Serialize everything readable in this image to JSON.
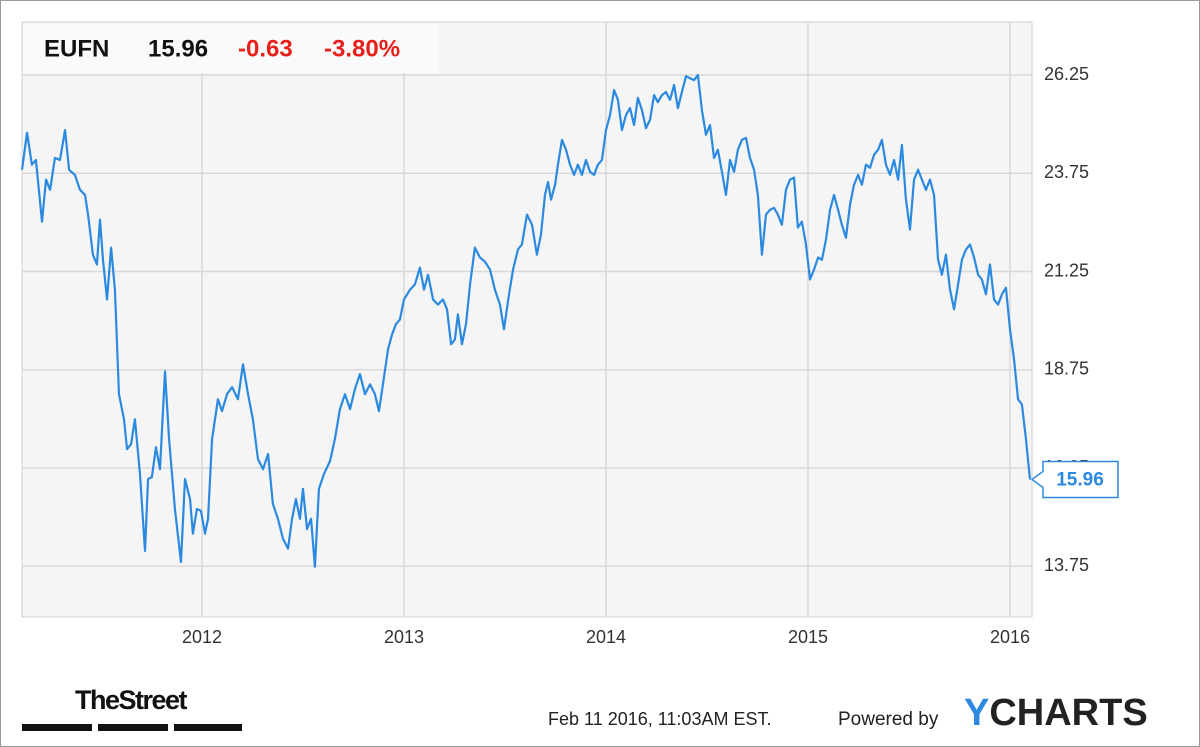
{
  "chart_data": {
    "type": "line",
    "symbol": "EUFN",
    "price": 15.96,
    "change": -0.63,
    "change_percent": "-3.80%",
    "color": "#2b8ae0",
    "grid": true,
    "xlim": [
      2011.109,
      2016.109
    ],
    "xticks": [
      2012,
      2013,
      2014,
      2015,
      2016
    ],
    "ylim": [
      12.46,
      27.6
    ],
    "yticks": [
      13.75,
      16.25,
      18.75,
      21.25,
      23.75,
      26.25
    ],
    "x": [
      2011.109,
      2011.134,
      2011.158,
      2011.178,
      2011.208,
      2011.228,
      2011.248,
      2011.272,
      2011.297,
      2011.322,
      2011.342,
      2011.371,
      2011.396,
      2011.421,
      2011.436,
      2011.46,
      2011.48,
      2011.495,
      2011.51,
      2011.53,
      2011.55,
      2011.569,
      2011.589,
      2011.614,
      2011.629,
      2011.649,
      2011.668,
      2011.693,
      2011.718,
      2011.733,
      2011.752,
      2011.772,
      2011.792,
      2011.817,
      2011.837,
      2011.866,
      2011.896,
      2011.916,
      2011.941,
      2011.955,
      2011.975,
      2011.995,
      2012.015,
      2012.03,
      2012.05,
      2012.079,
      2012.099,
      2012.124,
      2012.149,
      2012.178,
      2012.203,
      2012.228,
      2012.252,
      2012.277,
      2012.302,
      2012.327,
      2012.351,
      2012.376,
      2012.401,
      2012.426,
      2012.446,
      2012.465,
      2012.485,
      2012.5,
      2012.52,
      2012.54,
      2012.559,
      2012.579,
      2012.604,
      2012.634,
      2012.658,
      2012.683,
      2012.708,
      2012.733,
      2012.757,
      2012.782,
      2012.807,
      2012.832,
      2012.856,
      2012.876,
      2012.896,
      2012.921,
      2012.941,
      2012.96,
      2012.98,
      2013.0,
      2013.03,
      2013.054,
      2013.079,
      2013.099,
      2013.119,
      2013.144,
      2013.168,
      2013.193,
      2013.213,
      2013.233,
      2013.252,
      2013.267,
      2013.287,
      2013.307,
      2013.327,
      2013.351,
      2013.376,
      2013.401,
      2013.426,
      2013.45,
      2013.475,
      2013.495,
      2013.52,
      2013.54,
      2013.564,
      2013.584,
      2013.609,
      2013.634,
      2013.658,
      2013.678,
      2013.698,
      2013.713,
      2013.728,
      2013.748,
      2013.762,
      2013.782,
      2013.802,
      2013.822,
      2013.842,
      2013.861,
      2013.881,
      2013.901,
      2013.921,
      2013.941,
      2013.96,
      2013.98,
      2014.0,
      2014.02,
      2014.04,
      2014.059,
      2014.079,
      2014.099,
      2014.119,
      2014.139,
      2014.158,
      2014.178,
      2014.198,
      2014.218,
      2014.238,
      2014.257,
      2014.277,
      2014.297,
      2014.317,
      2014.337,
      2014.356,
      2014.376,
      2014.396,
      2014.416,
      2014.436,
      2014.455,
      2014.475,
      2014.495,
      2014.515,
      2014.535,
      2014.554,
      2014.574,
      2014.594,
      2014.614,
      2014.634,
      2014.653,
      2014.673,
      2014.693,
      2014.713,
      2014.733,
      2014.752,
      2014.772,
      2014.792,
      2014.812,
      2014.832,
      2014.851,
      2014.871,
      2014.891,
      2014.911,
      2014.931,
      2014.95,
      2014.97,
      2014.99,
      2015.01,
      2015.03,
      2015.05,
      2015.069,
      2015.089,
      2015.109,
      2015.129,
      2015.149,
      2015.168,
      2015.188,
      2015.208,
      2015.228,
      2015.248,
      2015.267,
      2015.287,
      2015.307,
      2015.327,
      2015.347,
      2015.366,
      2015.386,
      2015.406,
      2015.426,
      2015.446,
      2015.465,
      2015.485,
      2015.505,
      2015.525,
      2015.545,
      2015.564,
      2015.584,
      2015.604,
      2015.624,
      2015.644,
      2015.663,
      2015.683,
      2015.703,
      2015.723,
      2015.743,
      2015.762,
      2015.782,
      2015.802,
      2015.822,
      2015.842,
      2015.861,
      2015.881,
      2015.901,
      2015.921,
      2015.941,
      2015.96,
      2015.98,
      2016.0,
      2016.02,
      2016.04,
      2016.059,
      2016.079,
      2016.099
    ],
    "values": [
      23.84,
      24.78,
      23.97,
      24.09,
      22.52,
      23.59,
      23.33,
      24.14,
      24.09,
      24.85,
      23.84,
      23.71,
      23.33,
      23.2,
      22.7,
      21.68,
      21.43,
      22.57,
      21.55,
      20.54,
      21.86,
      20.79,
      18.13,
      17.49,
      16.73,
      16.86,
      17.49,
      16.1,
      14.14,
      15.97,
      16.02,
      16.78,
      16.22,
      18.71,
      16.99,
      15.21,
      13.86,
      15.97,
      15.46,
      14.58,
      15.21,
      15.16,
      14.58,
      14.96,
      16.99,
      18.0,
      17.7,
      18.13,
      18.31,
      18.0,
      18.89,
      18.13,
      17.49,
      16.48,
      16.22,
      16.61,
      15.34,
      14.96,
      14.45,
      14.2,
      14.96,
      15.46,
      14.96,
      15.72,
      14.7,
      14.96,
      13.74,
      15.72,
      16.1,
      16.43,
      16.99,
      17.75,
      18.13,
      17.75,
      18.26,
      18.64,
      18.13,
      18.38,
      18.13,
      17.7,
      18.38,
      19.27,
      19.65,
      19.91,
      20.03,
      20.54,
      20.79,
      20.92,
      21.35,
      20.79,
      21.17,
      20.54,
      20.41,
      20.54,
      20.29,
      19.4,
      19.52,
      20.16,
      19.4,
      19.91,
      20.92,
      21.86,
      21.61,
      21.5,
      21.3,
      20.79,
      20.41,
      19.78,
      20.67,
      21.3,
      21.81,
      21.94,
      22.7,
      22.44,
      21.68,
      22.19,
      23.2,
      23.53,
      23.08,
      23.46,
      23.97,
      24.6,
      24.35,
      23.97,
      23.71,
      23.97,
      23.71,
      24.09,
      23.79,
      23.71,
      23.97,
      24.09,
      24.85,
      25.23,
      25.87,
      25.62,
      24.85,
      25.23,
      25.41,
      24.98,
      25.67,
      25.36,
      24.9,
      25.11,
      25.74,
      25.56,
      25.74,
      25.82,
      25.62,
      26.0,
      25.41,
      25.82,
      26.22,
      26.17,
      26.12,
      26.25,
      25.36,
      24.73,
      24.98,
      24.14,
      24.35,
      23.79,
      23.2,
      24.09,
      23.79,
      24.35,
      24.6,
      24.65,
      24.14,
      23.84,
      23.2,
      21.68,
      22.7,
      22.82,
      22.87,
      22.7,
      22.44,
      23.33,
      23.59,
      23.64,
      22.37,
      22.52,
      21.94,
      21.05,
      21.3,
      21.61,
      21.55,
      22.06,
      22.82,
      23.2,
      22.82,
      22.44,
      22.11,
      22.95,
      23.46,
      23.71,
      23.46,
      23.97,
      23.89,
      24.22,
      24.35,
      24.6,
      23.97,
      23.71,
      24.09,
      23.59,
      24.47,
      23.08,
      22.32,
      23.59,
      23.84,
      23.59,
      23.33,
      23.59,
      23.2,
      21.55,
      21.17,
      21.68,
      20.79,
      20.29,
      20.92,
      21.55,
      21.81,
      21.94,
      21.61,
      21.17,
      21.05,
      20.67,
      21.43,
      20.54,
      20.41,
      20.67,
      20.84,
      19.78,
      19.02,
      18.0,
      17.87,
      16.99,
      15.96
    ]
  },
  "footer": {
    "source": "TheStreet",
    "timestamp": "Feb 11 2016, 11:03AM EST.",
    "powered_by": "Powered by",
    "logo_mark": "Y",
    "logo_text": "CHARTS"
  }
}
